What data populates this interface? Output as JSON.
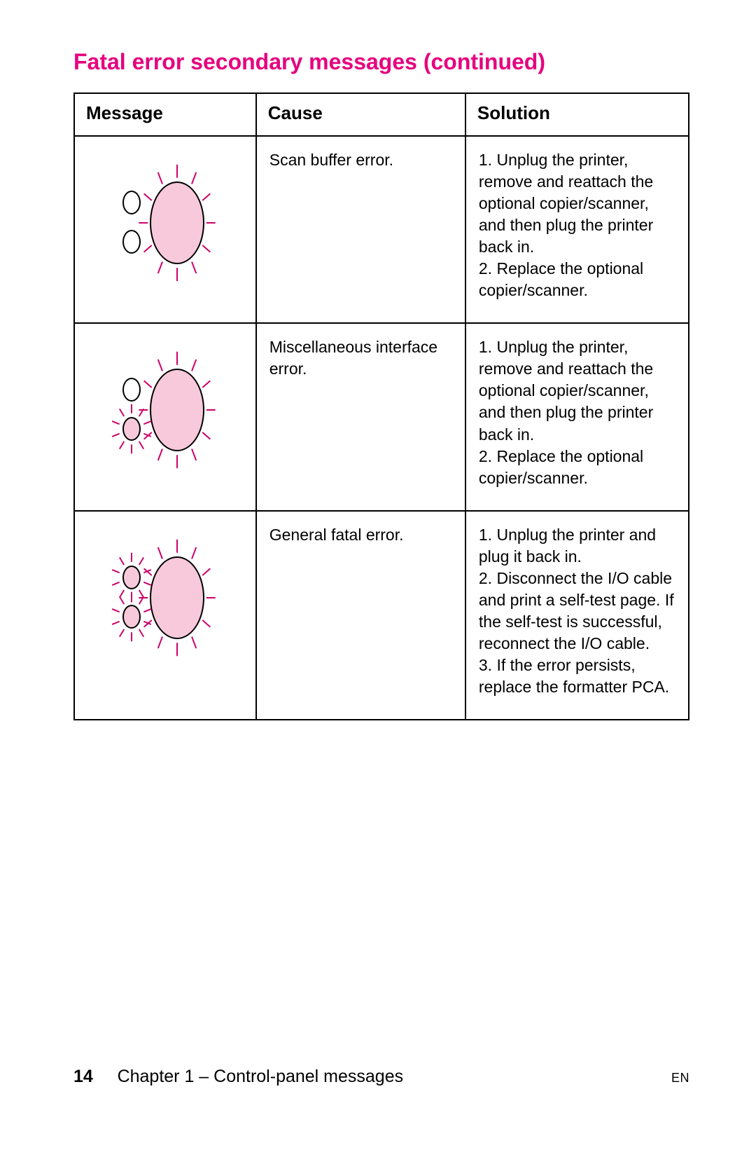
{
  "title": {
    "text": "Fatal error secondary messages (continued)",
    "color": "#e6007e"
  },
  "table": {
    "headers": {
      "message": "Message",
      "cause": "Cause",
      "solution": "Solution"
    },
    "rows": [
      {
        "cause": "Scan buffer error.",
        "solution": "1. Unplug the printer, remove and reattach the optional copier/scanner, and then plug the printer back in.\n2. Replace the optional copier/scanner.",
        "icon": {
          "main_lit": true,
          "top_lit": false,
          "bottom_lit": false
        }
      },
      {
        "cause": "Miscellaneous interface error.",
        "solution": "1. Unplug the printer, remove and reattach the optional copier/scanner, and then plug the printer back in.\n2. Replace the optional copier/scanner.",
        "icon": {
          "main_lit": true,
          "top_lit": false,
          "bottom_lit": true
        }
      },
      {
        "cause": "General fatal error.",
        "solution": "1. Unplug the printer and plug it back in.\n2. Disconnect the I/O cable and print a self-test page. If the self-test is successful, reconnect the I/O cable.\n3. If the error persists, replace the formatter PCA.",
        "icon": {
          "main_lit": true,
          "top_lit": true,
          "bottom_lit": true
        }
      }
    ]
  },
  "diagram_style": {
    "fill_lit": "#f8c9db",
    "fill_off": "#ffffff",
    "stroke": "#000000",
    "ray_color": "#cc006b",
    "stroke_width": 2,
    "ray_width": 2
  },
  "footer": {
    "page_number": "14",
    "chapter": "Chapter 1 – Control-panel messages",
    "lang": "EN"
  }
}
